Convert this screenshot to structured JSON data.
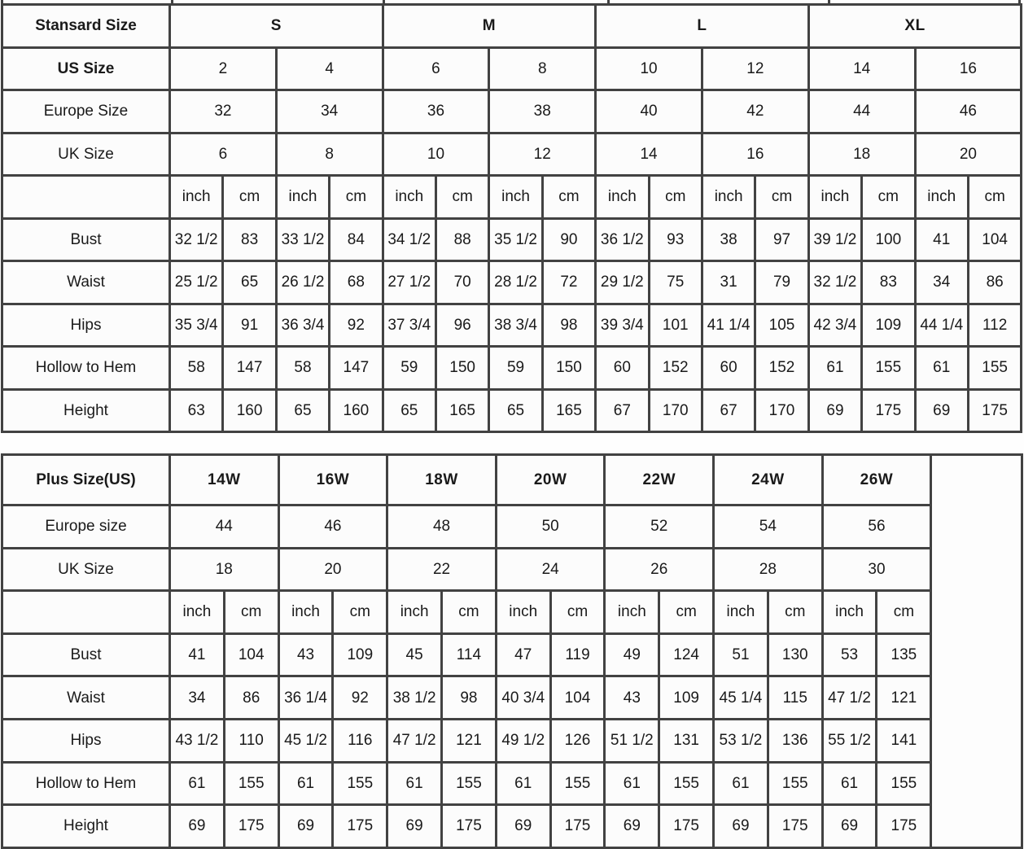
{
  "chart_data": [
    {
      "type": "table",
      "name": "standard_size_table",
      "corner_label": "Stansard Size",
      "size_groups": [
        "S",
        "M",
        "L",
        "XL"
      ],
      "size_rows": [
        {
          "label": "US Size",
          "bold": true,
          "values": [
            "2",
            "4",
            "6",
            "8",
            "10",
            "12",
            "14",
            "16"
          ]
        },
        {
          "label": "Europe Size",
          "bold": false,
          "values": [
            "32",
            "34",
            "36",
            "38",
            "40",
            "42",
            "44",
            "46"
          ]
        },
        {
          "label": "UK Size",
          "bold": false,
          "values": [
            "6",
            "8",
            "10",
            "12",
            "14",
            "16",
            "18",
            "20"
          ]
        }
      ],
      "unit_labels": [
        "inch",
        "cm"
      ],
      "measurement_rows": [
        {
          "label": "Bust",
          "values": [
            "32 1/2",
            "83",
            "33 1/2",
            "84",
            "34 1/2",
            "88",
            "35 1/2",
            "90",
            "36 1/2",
            "93",
            "38",
            "97",
            "39 1/2",
            "100",
            "41",
            "104"
          ]
        },
        {
          "label": "Waist",
          "values": [
            "25 1/2",
            "65",
            "26 1/2",
            "68",
            "27 1/2",
            "70",
            "28 1/2",
            "72",
            "29 1/2",
            "75",
            "31",
            "79",
            "32 1/2",
            "83",
            "34",
            "86"
          ]
        },
        {
          "label": "Hips",
          "values": [
            "35 3/4",
            "91",
            "36 3/4",
            "92",
            "37 3/4",
            "96",
            "38 3/4",
            "98",
            "39 3/4",
            "101",
            "41 1/4",
            "105",
            "42 3/4",
            "109",
            "44 1/4",
            "112"
          ]
        },
        {
          "label": "Hollow to Hem",
          "values": [
            "58",
            "147",
            "58",
            "147",
            "59",
            "150",
            "59",
            "150",
            "60",
            "152",
            "60",
            "152",
            "61",
            "155",
            "61",
            "155"
          ]
        },
        {
          "label": "Height",
          "values": [
            "63",
            "160",
            "65",
            "160",
            "65",
            "165",
            "65",
            "165",
            "67",
            "170",
            "67",
            "170",
            "69",
            "175",
            "69",
            "175"
          ]
        }
      ],
      "trailing_empty_column": false
    },
    {
      "type": "table",
      "name": "plus_size_table",
      "corner_label": "Plus Size(US)",
      "size_groups": [
        "14W",
        "16W",
        "18W",
        "20W",
        "22W",
        "24W",
        "26W"
      ],
      "size_rows": [
        {
          "label": "Europe size",
          "bold": false,
          "values": [
            "44",
            "46",
            "48",
            "50",
            "52",
            "54",
            "56"
          ]
        },
        {
          "label": "UK Size",
          "bold": false,
          "values": [
            "18",
            "20",
            "22",
            "24",
            "26",
            "28",
            "30"
          ]
        }
      ],
      "unit_labels": [
        "inch",
        "cm"
      ],
      "measurement_rows": [
        {
          "label": "Bust",
          "values": [
            "41",
            "104",
            "43",
            "109",
            "45",
            "114",
            "47",
            "119",
            "49",
            "124",
            "51",
            "130",
            "53",
            "135"
          ]
        },
        {
          "label": "Waist",
          "values": [
            "34",
            "86",
            "36 1/4",
            "92",
            "38 1/2",
            "98",
            "40 3/4",
            "104",
            "43",
            "109",
            "45 1/4",
            "115",
            "47 1/2",
            "121"
          ]
        },
        {
          "label": "Hips",
          "values": [
            "43 1/2",
            "110",
            "45 1/2",
            "116",
            "47 1/2",
            "121",
            "49 1/2",
            "126",
            "51 1/2",
            "131",
            "53 1/2",
            "136",
            "55 1/2",
            "141"
          ]
        },
        {
          "label": "Hollow to Hem",
          "values": [
            "61",
            "155",
            "61",
            "155",
            "61",
            "155",
            "61",
            "155",
            "61",
            "155",
            "61",
            "155",
            "61",
            "155"
          ]
        },
        {
          "label": "Height",
          "values": [
            "69",
            "175",
            "69",
            "175",
            "69",
            "175",
            "69",
            "175",
            "69",
            "175",
            "69",
            "175",
            "69",
            "175"
          ]
        }
      ],
      "trailing_empty_column": true
    }
  ],
  "colors": {
    "border": "#424242",
    "text": "#1a1a1a",
    "background": "#fcfcfc"
  }
}
